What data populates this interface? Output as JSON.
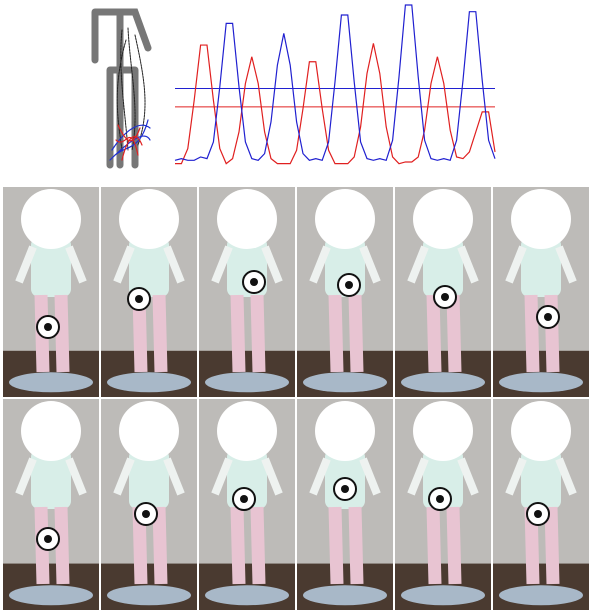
{
  "chart_data": {
    "type": "line",
    "x": [
      0,
      2,
      4,
      6,
      8,
      10,
      12,
      14,
      16,
      18,
      20,
      22,
      24,
      26,
      28,
      30,
      32,
      34,
      36,
      38,
      40,
      42,
      44,
      46,
      48,
      50,
      52,
      54,
      56,
      58,
      60,
      62,
      64,
      66,
      68,
      70,
      72,
      74,
      76,
      78,
      80,
      82,
      84,
      86,
      88,
      90,
      92,
      94,
      96,
      98,
      100
    ],
    "series": [
      {
        "color": "#e02020",
        "values": [
          5,
          5,
          14,
          43,
          76,
          76,
          43,
          14,
          5,
          8,
          24,
          53,
          69,
          53,
          24,
          8,
          5,
          5,
          5,
          13,
          38,
          66,
          66,
          38,
          13,
          5,
          5,
          5,
          9,
          27,
          59,
          77,
          59,
          27,
          9,
          5,
          6,
          6,
          9,
          25,
          53,
          69,
          53,
          25,
          9,
          8,
          12,
          24,
          36,
          36,
          12
        ]
      },
      {
        "color": "#2020d0",
        "values": [
          7,
          8,
          7,
          7,
          9,
          8,
          18,
          51,
          89,
          89,
          51,
          18,
          8,
          7,
          11,
          30,
          64,
          83,
          64,
          30,
          11,
          7,
          8,
          7,
          18,
          54,
          94,
          94,
          54,
          18,
          8,
          7,
          8,
          7,
          19,
          57,
          100,
          100,
          57,
          19,
          8,
          7,
          8,
          7,
          19,
          55,
          96,
          96,
          55,
          19,
          8
        ]
      }
    ],
    "hlines": [
      {
        "color": "#2020d0",
        "value": 50
      },
      {
        "color": "#e02020",
        "value": 39
      }
    ],
    "xlim": [
      0,
      100
    ],
    "ylim": [
      0,
      100
    ]
  }
}
